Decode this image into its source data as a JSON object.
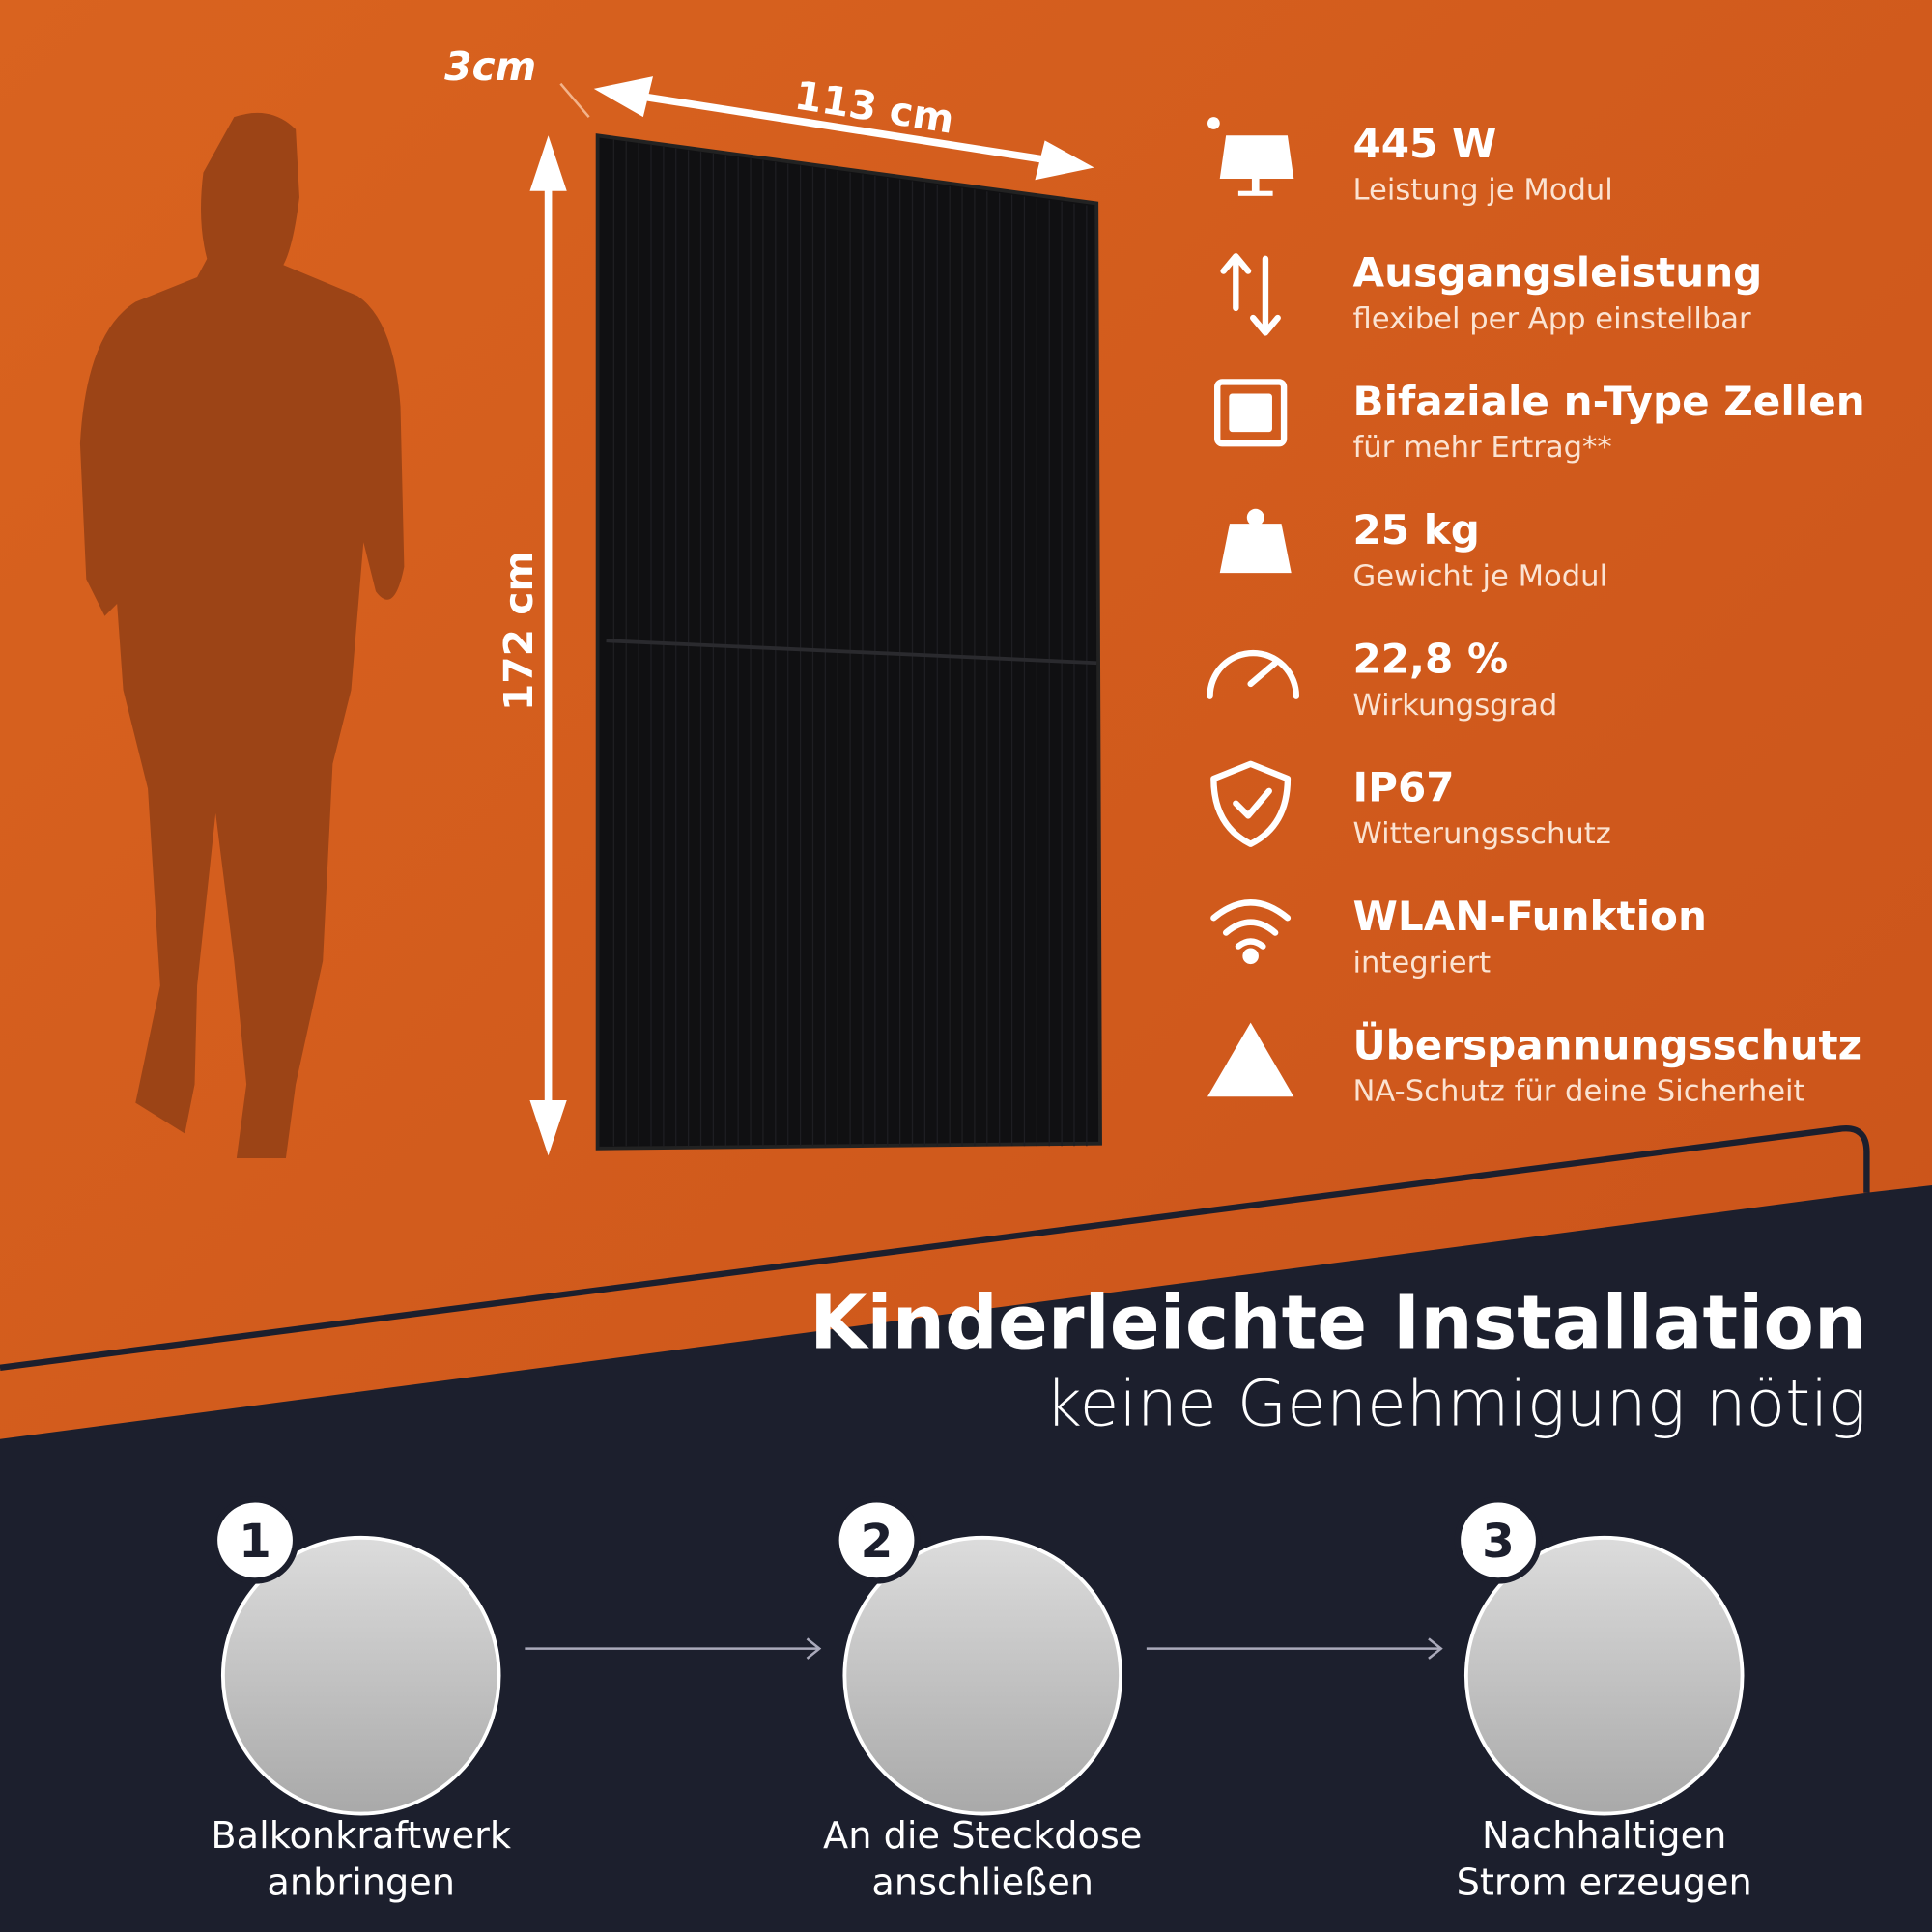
{
  "dimensions": {
    "depth": "3cm",
    "width": "113 cm",
    "height": "172 cm"
  },
  "features": [
    {
      "title": "445 W",
      "subtitle": "Leistung je Modul"
    },
    {
      "title": "Ausgangsleistung",
      "subtitle": "flexibel per App einstellbar"
    },
    {
      "title": "Bifaziale n-Type Zellen",
      "subtitle": "für mehr Ertrag**"
    },
    {
      "title": "25 kg",
      "subtitle": "Gewicht je Modul"
    },
    {
      "title": "22,8 %",
      "subtitle": "Wirkungsgrad"
    },
    {
      "title": "IP67",
      "subtitle": "Witterungsschutz"
    },
    {
      "title": "WLAN-Funktion",
      "subtitle": "integriert"
    },
    {
      "title": "Überspannungsschutz",
      "subtitle": "NA-Schutz für deine Sicherheit"
    }
  ],
  "installation": {
    "title": "Kinderleichte Installation",
    "subtitle": "keine Genehmigung nötig"
  },
  "steps": [
    {
      "number": "1",
      "lines": [
        "Balkonkraftwerk",
        "anbringen"
      ]
    },
    {
      "number": "2",
      "lines": [
        "An die Steckdose",
        "anschließen"
      ]
    },
    {
      "number": "3",
      "lines": [
        "Nachhaltigen",
        "Strom erzeugen"
      ]
    }
  ]
}
